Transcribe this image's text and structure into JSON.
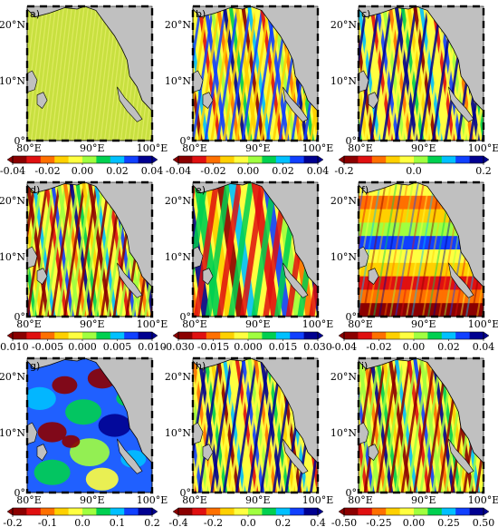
{
  "panels": [
    {
      "label": "a)",
      "pattern": "flat",
      "ticks": [
        "-0.04",
        "-0.02",
        "0.00",
        "0.02",
        "0.04"
      ]
    },
    {
      "label": "b)",
      "pattern": "stripes",
      "ticks": [
        "-0.04",
        "-0.02",
        "0.00",
        "0.02",
        "0.04"
      ]
    },
    {
      "label": "c)",
      "pattern": "stripes",
      "ticks": [
        "-0.2",
        "0.0",
        "0.2"
      ]
    },
    {
      "label": "d)",
      "pattern": "stripes",
      "ticks": [
        "-0.010",
        "-0.005",
        "0.000",
        "0.005",
        "0.010"
      ]
    },
    {
      "label": "e)",
      "pattern": "wide",
      "ticks": [
        "-0.030",
        "-0.015",
        "0.000",
        "0.015",
        "0.030"
      ]
    },
    {
      "label": "f)",
      "pattern": "bands",
      "ticks": [
        "-0.04",
        "-0.02",
        "0.00",
        "0.02",
        "0.04"
      ]
    },
    {
      "label": "g)",
      "pattern": "blobs",
      "ticks": [
        "-0.2",
        "-0.1",
        "0.0",
        "0.1",
        "0.2"
      ]
    },
    {
      "label": "h)",
      "pattern": "stripes",
      "ticks": [
        "-0.4",
        "-0.2",
        "0.0",
        "0.2",
        "0.4"
      ]
    },
    {
      "label": "i)",
      "pattern": "stripes",
      "ticks": [
        "-0.50",
        "-0.25",
        "0.00",
        "0.25",
        "0.50"
      ]
    }
  ],
  "axes": {
    "lat_labels": [
      "20°N",
      "10°N",
      "0°"
    ],
    "lon_labels": [
      "80°E",
      "90°E",
      "100°E"
    ]
  },
  "colormap": [
    "#8b0000",
    "#e01010",
    "#ff7000",
    "#ffd000",
    "#ffff40",
    "#a0ff40",
    "#00d050",
    "#00c0ff",
    "#1040ff",
    "#000090"
  ],
  "colors": {
    "land": "#c0c0c0",
    "coast": "#000000"
  }
}
